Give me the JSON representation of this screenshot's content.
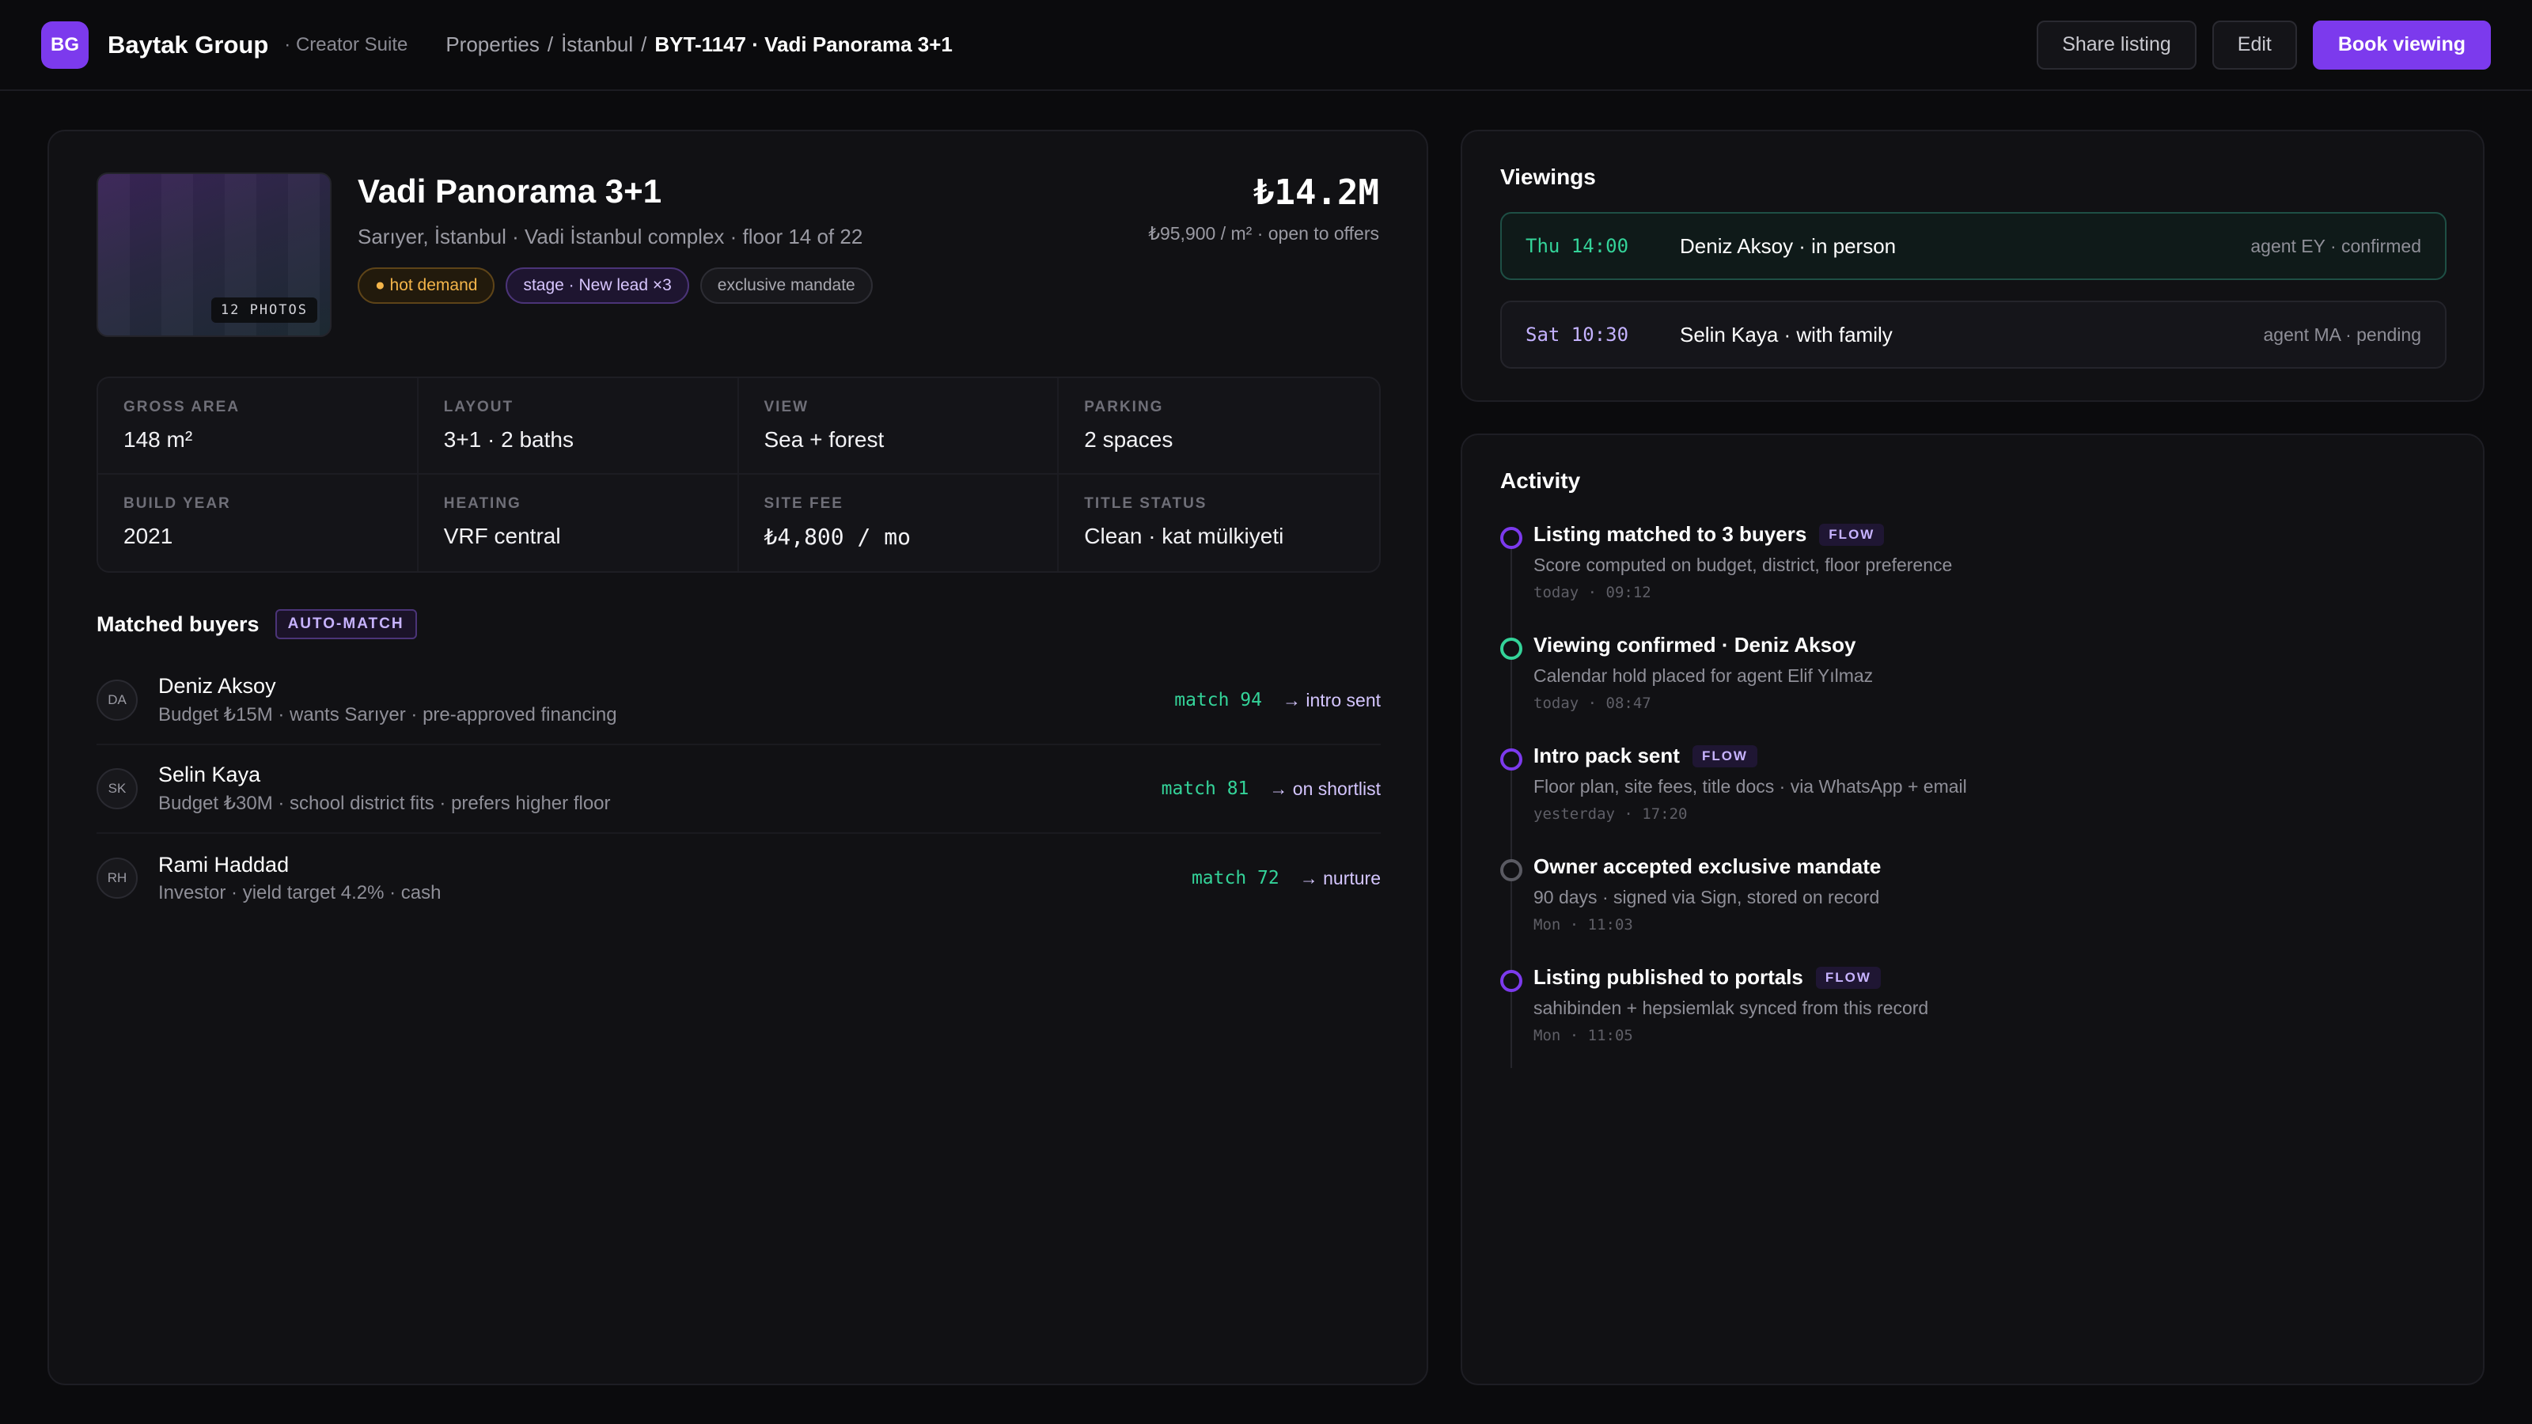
{
  "header": {
    "logo": "BG",
    "brand": "Baytak Group",
    "suite": "· Creator Suite",
    "crumbs": [
      "Properties",
      "/",
      "İstanbul",
      "/",
      "BYT-1147 · Vadi Panorama 3+1"
    ],
    "actions": {
      "share": "Share listing",
      "edit": "Edit",
      "book": "Book viewing"
    },
    "accent": "#7c3aed"
  },
  "property": {
    "photos": "12 PHOTOS",
    "title": "Vadi Panorama 3+1",
    "subtitle": "Sarıyer, İstanbul · Vadi İstanbul complex · floor 14 of 22",
    "tags": {
      "hot": "● hot demand",
      "stage": "stage · New lead ×3",
      "exclusive": "exclusive mandate"
    },
    "price": "₺14.2M",
    "price_per_m2": "₺95,900 / m² · open to offers",
    "specs": [
      {
        "label": "GROSS AREA",
        "value": "148 m²"
      },
      {
        "label": "LAYOUT",
        "value": "3+1 · 2 baths"
      },
      {
        "label": "VIEW",
        "value": "Sea + forest"
      },
      {
        "label": "PARKING",
        "value": "2 spaces"
      },
      {
        "label": "BUILD YEAR",
        "value": "2021"
      },
      {
        "label": "HEATING",
        "value": "VRF central"
      },
      {
        "label": "SITE FEE",
        "value": "₺4,800 / mo"
      },
      {
        "label": "TITLE STATUS",
        "value": "Clean · kat mülkiyeti"
      }
    ]
  },
  "matched_buyers": {
    "title": "Matched buyers",
    "badge": "AUTO-MATCH",
    "items": [
      {
        "initials": "DA",
        "name": "Deniz Aksoy",
        "desc": "Budget ₺15M · wants Sarıyer · pre-approved financing",
        "match": "match 94",
        "status": "→ intro sent"
      },
      {
        "initials": "SK",
        "name": "Selin Kaya",
        "desc": "Budget ₺30M · school district fits · prefers higher floor",
        "match": "match 81",
        "status": "→ on shortlist"
      },
      {
        "initials": "RH",
        "name": "Rami Haddad",
        "desc": "Investor · yield target 4.2% · cash",
        "match": "match 72",
        "status": "→ nurture"
      }
    ]
  },
  "viewings": {
    "title": "Viewings",
    "items": [
      {
        "time": "Thu 14:00",
        "name": "Deniz Aksoy · in person",
        "meta": "agent EY · confirmed"
      },
      {
        "time": "Sat 10:30",
        "name": "Selin Kaya · with family",
        "meta": "agent MA · pending"
      }
    ]
  },
  "activity": {
    "title": "Activity",
    "items": [
      {
        "title": "Listing matched to 3 buyers",
        "badge": "FLOW",
        "desc": "Score computed on budget, district, floor preference",
        "time": "today · 09:12"
      },
      {
        "title": "Viewing confirmed · Deniz Aksoy",
        "badge": "",
        "desc": "Calendar hold placed for agent Elif Yılmaz",
        "time": "today · 08:47"
      },
      {
        "title": "Intro pack sent",
        "badge": "FLOW",
        "desc": "Floor plan, site fees, title docs · via WhatsApp + email",
        "time": "yesterday · 17:20"
      },
      {
        "title": "Owner accepted exclusive mandate",
        "badge": "",
        "desc": "90 days · signed via Sign, stored on record",
        "time": "Mon · 11:03"
      },
      {
        "title": "Listing published to portals",
        "badge": "FLOW",
        "desc": "sahibinden + hepsiemlak synced from this record",
        "time": "Mon · 11:05"
      }
    ]
  }
}
